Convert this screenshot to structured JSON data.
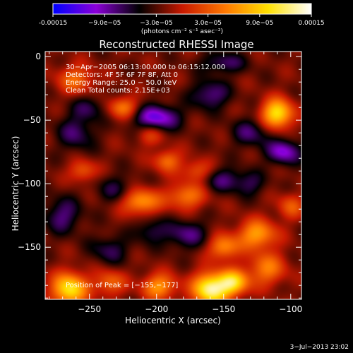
{
  "chart_data": {
    "type": "heatmap",
    "title": "Reconstructed RHESSI Image",
    "xlabel": "Heliocentric X (arcsec)",
    "ylabel": "Heliocentric Y (arcsec)",
    "xlim": [
      -283,
      -92
    ],
    "ylim": [
      -191,
      4
    ],
    "x_ticks": [
      -250,
      -200,
      -150,
      -100
    ],
    "x_tick_labels": [
      "−250",
      "−200",
      "−150",
      "−100"
    ],
    "y_ticks": [
      0,
      -50,
      -100,
      -150
    ],
    "y_tick_labels": [
      "0",
      "−50",
      "−100",
      "−150"
    ],
    "colorbar": {
      "range": [
        -0.00015,
        0.00015
      ],
      "ticks": [
        -0.00015,
        -9e-05,
        -3e-05,
        3e-05,
        9e-05,
        0.00015
      ],
      "tick_labels": [
        "-0.00015",
        "−9.0e−05",
        "−3.0e−05",
        "3.0e−05",
        "9.0e−05",
        "0.00015"
      ],
      "unit_label": "(photons cm⁻² s⁻¹ asec⁻²)",
      "colormap": [
        "#0000ff",
        "#8c00d8",
        "#000000",
        "#c81900",
        "#ff7800",
        "#ffe100",
        "#ffffff"
      ]
    },
    "annotations": [
      "30−Apr−2005 06:13:00.000 to 06:15:12.000",
      "Detectors: 4F 5F 6F 7F 8F, Att 0",
      "Energy Range: 25.0 − 50.0 keV",
      "Clean    Total counts: 2.15E+03"
    ],
    "peak_label": "Position of Peak = [−155,−177]",
    "timestamp": "3−Jul−2013 23:02",
    "sources": [
      {
        "x": -160,
        "y": -183,
        "amp": 0.00015,
        "sx": 9,
        "sy": 9
      },
      {
        "x": -143,
        "y": -178,
        "amp": 0.00012,
        "sx": 8,
        "sy": 7
      },
      {
        "x": -265,
        "y": -183,
        "amp": 0.00013,
        "sx": 9,
        "sy": 9
      },
      {
        "x": -235,
        "y": -178,
        "amp": 6e-05,
        "sx": 8,
        "sy": 7
      },
      {
        "x": -198,
        "y": -181,
        "amp": 8.5e-05,
        "sx": 9,
        "sy": 7
      },
      {
        "x": -118,
        "y": -167,
        "amp": 7e-05,
        "sx": 10,
        "sy": 9
      },
      {
        "x": -125,
        "y": -140,
        "amp": 9e-05,
        "sx": 10,
        "sy": 8
      },
      {
        "x": -150,
        "y": -150,
        "amp": 8e-05,
        "sx": 8,
        "sy": 7
      },
      {
        "x": -110,
        "y": -45,
        "amp": 0.00013,
        "sx": 8,
        "sy": 8
      },
      {
        "x": -225,
        "y": -40,
        "amp": 7e-05,
        "sx": 8,
        "sy": 6
      },
      {
        "x": -260,
        "y": -18,
        "amp": 6e-05,
        "sx": 10,
        "sy": 8
      },
      {
        "x": -212,
        "y": -114,
        "amp": 9e-05,
        "sx": 10,
        "sy": 7
      },
      {
        "x": -178,
        "y": -110,
        "amp": 7e-05,
        "sx": 10,
        "sy": 7
      },
      {
        "x": -192,
        "y": -82,
        "amp": 6.5e-05,
        "sx": 7,
        "sy": 6
      },
      {
        "x": -255,
        "y": -90,
        "amp": 5.5e-05,
        "sx": 7,
        "sy": 6
      },
      {
        "x": -170,
        "y": -90,
        "amp": 5e-05,
        "sx": 8,
        "sy": 6
      },
      {
        "x": -205,
        "y": -62,
        "amp": 4e-05,
        "sx": 7,
        "sy": 6
      },
      {
        "x": -100,
        "y": -118,
        "amp": 5e-05,
        "sx": 7,
        "sy": 7
      },
      {
        "x": -200,
        "y": -48,
        "amp": -9e-05,
        "sx": 12,
        "sy": 7
      },
      {
        "x": -160,
        "y": -30,
        "amp": -6e-05,
        "sx": 10,
        "sy": 8
      },
      {
        "x": -130,
        "y": -60,
        "amp": -5e-05,
        "sx": 10,
        "sy": 8
      },
      {
        "x": -105,
        "y": -75,
        "amp": -8e-05,
        "sx": 9,
        "sy": 7
      },
      {
        "x": -250,
        "y": -40,
        "amp": -4e-05,
        "sx": 9,
        "sy": 7
      },
      {
        "x": -150,
        "y": -97,
        "amp": -5e-05,
        "sx": 10,
        "sy": 7
      },
      {
        "x": -130,
        "y": -100,
        "amp": -4e-05,
        "sx": 8,
        "sy": 7
      },
      {
        "x": -178,
        "y": -140,
        "amp": -5.5e-05,
        "sx": 12,
        "sy": 8
      },
      {
        "x": -205,
        "y": -137,
        "amp": -4e-05,
        "sx": 8,
        "sy": 7
      },
      {
        "x": -235,
        "y": -152,
        "amp": -4.5e-05,
        "sx": 10,
        "sy": 8
      },
      {
        "x": -270,
        "y": -125,
        "amp": -5.5e-05,
        "sx": 10,
        "sy": 10
      },
      {
        "x": -260,
        "y": -60,
        "amp": -5e-05,
        "sx": 10,
        "sy": 10
      },
      {
        "x": -230,
        "y": -105,
        "amp": -4e-05,
        "sx": 10,
        "sy": 8
      },
      {
        "x": -150,
        "y": -5,
        "amp": -5e-05,
        "sx": 12,
        "sy": 6
      }
    ],
    "background": -2.2e-05
  }
}
